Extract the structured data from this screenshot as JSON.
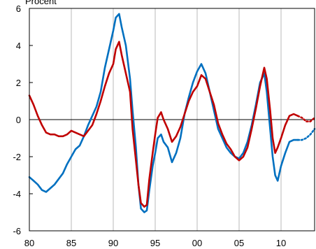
{
  "chart_data": {
    "type": "line",
    "ylabel": "Procent",
    "xlim": [
      1980,
      2014
    ],
    "ylim": [
      -6,
      6
    ],
    "x_ticks": [
      {
        "value": 1980,
        "label": "80"
      },
      {
        "value": 1985,
        "label": "85"
      },
      {
        "value": 1990,
        "label": "90"
      },
      {
        "value": 1995,
        "label": "95"
      },
      {
        "value": 2000,
        "label": "00"
      },
      {
        "value": 2005,
        "label": "05"
      },
      {
        "value": 2010,
        "label": "10"
      }
    ],
    "y_ticks": [
      {
        "value": 6,
        "label": "6"
      },
      {
        "value": 4,
        "label": "4"
      },
      {
        "value": 2,
        "label": "2"
      },
      {
        "value": 0,
        "label": "0"
      },
      {
        "value": -2,
        "label": "-2"
      },
      {
        "value": -4,
        "label": "-4"
      },
      {
        "value": -6,
        "label": "-6"
      }
    ],
    "gridlines": "vertical",
    "zero_line": true,
    "series": [
      {
        "color": "#0070c0",
        "forecast_from": 2012.0,
        "points": [
          [
            1980.0,
            -3.1
          ],
          [
            1980.5,
            -3.3
          ],
          [
            1981.0,
            -3.5
          ],
          [
            1981.5,
            -3.8
          ],
          [
            1982.0,
            -3.9
          ],
          [
            1982.5,
            -3.7
          ],
          [
            1983.0,
            -3.5
          ],
          [
            1983.5,
            -3.2
          ],
          [
            1984.0,
            -2.9
          ],
          [
            1984.5,
            -2.4
          ],
          [
            1985.0,
            -2.0
          ],
          [
            1985.5,
            -1.6
          ],
          [
            1986.0,
            -1.4
          ],
          [
            1986.5,
            -0.9
          ],
          [
            1987.0,
            -0.3
          ],
          [
            1987.5,
            0.2
          ],
          [
            1988.0,
            0.7
          ],
          [
            1988.5,
            1.5
          ],
          [
            1989.0,
            2.8
          ],
          [
            1989.5,
            3.8
          ],
          [
            1990.0,
            4.8
          ],
          [
            1990.3,
            5.5
          ],
          [
            1990.7,
            5.7
          ],
          [
            1991.0,
            5.0
          ],
          [
            1991.5,
            4.0
          ],
          [
            1992.0,
            2.2
          ],
          [
            1992.3,
            0.5
          ],
          [
            1992.7,
            -1.5
          ],
          [
            1993.0,
            -3.5
          ],
          [
            1993.3,
            -4.8
          ],
          [
            1993.7,
            -5.0
          ],
          [
            1994.0,
            -4.9
          ],
          [
            1994.3,
            -3.8
          ],
          [
            1994.7,
            -2.5
          ],
          [
            1995.0,
            -1.8
          ],
          [
            1995.3,
            -1.0
          ],
          [
            1995.7,
            -0.8
          ],
          [
            1996.0,
            -1.2
          ],
          [
            1996.5,
            -1.5
          ],
          [
            1997.0,
            -2.3
          ],
          [
            1997.5,
            -1.8
          ],
          [
            1998.0,
            -1.0
          ],
          [
            1998.5,
            0.3
          ],
          [
            1999.0,
            1.2
          ],
          [
            1999.5,
            2.0
          ],
          [
            2000.0,
            2.6
          ],
          [
            2000.5,
            3.0
          ],
          [
            2001.0,
            2.5
          ],
          [
            2001.5,
            1.5
          ],
          [
            2002.0,
            0.5
          ],
          [
            2002.5,
            -0.5
          ],
          [
            2003.0,
            -1.0
          ],
          [
            2003.5,
            -1.5
          ],
          [
            2004.0,
            -1.8
          ],
          [
            2004.5,
            -2.0
          ],
          [
            2005.0,
            -2.1
          ],
          [
            2005.5,
            -1.8
          ],
          [
            2006.0,
            -1.2
          ],
          [
            2006.5,
            -0.3
          ],
          [
            2007.0,
            0.8
          ],
          [
            2007.5,
            2.0
          ],
          [
            2008.0,
            2.5
          ],
          [
            2008.3,
            1.5
          ],
          [
            2008.7,
            -0.5
          ],
          [
            2009.0,
            -2.0
          ],
          [
            2009.3,
            -3.0
          ],
          [
            2009.6,
            -3.3
          ],
          [
            2010.0,
            -2.5
          ],
          [
            2010.5,
            -1.8
          ],
          [
            2011.0,
            -1.2
          ],
          [
            2011.5,
            -1.1
          ],
          [
            2012.0,
            -1.1
          ],
          [
            2012.5,
            -1.1
          ],
          [
            2013.0,
            -1.0
          ],
          [
            2013.5,
            -0.8
          ],
          [
            2014.0,
            -0.5
          ]
        ]
      },
      {
        "color": "#c00000",
        "forecast_from": 2012.0,
        "points": [
          [
            1980.0,
            1.3
          ],
          [
            1980.5,
            0.8
          ],
          [
            1981.0,
            0.2
          ],
          [
            1981.5,
            -0.3
          ],
          [
            1982.0,
            -0.7
          ],
          [
            1982.5,
            -0.8
          ],
          [
            1983.0,
            -0.8
          ],
          [
            1983.5,
            -0.9
          ],
          [
            1984.0,
            -0.9
          ],
          [
            1984.5,
            -0.8
          ],
          [
            1985.0,
            -0.6
          ],
          [
            1985.5,
            -0.7
          ],
          [
            1986.0,
            -0.8
          ],
          [
            1986.5,
            -0.9
          ],
          [
            1987.0,
            -0.6
          ],
          [
            1987.5,
            -0.3
          ],
          [
            1988.0,
            0.3
          ],
          [
            1988.5,
            1.0
          ],
          [
            1989.0,
            1.8
          ],
          [
            1989.5,
            2.5
          ],
          [
            1990.0,
            3.0
          ],
          [
            1990.3,
            3.8
          ],
          [
            1990.7,
            4.2
          ],
          [
            1991.0,
            3.5
          ],
          [
            1991.5,
            2.5
          ],
          [
            1992.0,
            1.5
          ],
          [
            1992.3,
            -0.5
          ],
          [
            1992.7,
            -2.2
          ],
          [
            1993.0,
            -3.5
          ],
          [
            1993.3,
            -4.5
          ],
          [
            1993.7,
            -4.7
          ],
          [
            1994.0,
            -4.6
          ],
          [
            1994.3,
            -3.2
          ],
          [
            1994.7,
            -1.8
          ],
          [
            1995.0,
            -0.8
          ],
          [
            1995.3,
            0.1
          ],
          [
            1995.7,
            0.4
          ],
          [
            1996.0,
            0.0
          ],
          [
            1996.5,
            -0.5
          ],
          [
            1997.0,
            -1.2
          ],
          [
            1997.5,
            -0.9
          ],
          [
            1998.0,
            -0.4
          ],
          [
            1998.5,
            0.3
          ],
          [
            1999.0,
            1.0
          ],
          [
            1999.5,
            1.5
          ],
          [
            2000.0,
            1.8
          ],
          [
            2000.5,
            2.4
          ],
          [
            2001.0,
            2.2
          ],
          [
            2001.5,
            1.5
          ],
          [
            2002.0,
            0.8
          ],
          [
            2002.5,
            -0.2
          ],
          [
            2003.0,
            -0.8
          ],
          [
            2003.5,
            -1.3
          ],
          [
            2004.0,
            -1.6
          ],
          [
            2004.5,
            -2.0
          ],
          [
            2005.0,
            -2.2
          ],
          [
            2005.5,
            -2.0
          ],
          [
            2006.0,
            -1.5
          ],
          [
            2006.5,
            -0.5
          ],
          [
            2007.0,
            0.6
          ],
          [
            2007.5,
            1.8
          ],
          [
            2008.0,
            2.8
          ],
          [
            2008.3,
            2.2
          ],
          [
            2008.7,
            0.5
          ],
          [
            2009.0,
            -1.0
          ],
          [
            2009.3,
            -1.8
          ],
          [
            2009.6,
            -1.5
          ],
          [
            2010.0,
            -1.0
          ],
          [
            2010.5,
            -0.3
          ],
          [
            2011.0,
            0.2
          ],
          [
            2011.5,
            0.3
          ],
          [
            2012.0,
            0.2
          ],
          [
            2012.5,
            0.1
          ],
          [
            2013.0,
            -0.1
          ],
          [
            2013.5,
            -0.1
          ],
          [
            2014.0,
            0.1
          ]
        ]
      }
    ]
  }
}
